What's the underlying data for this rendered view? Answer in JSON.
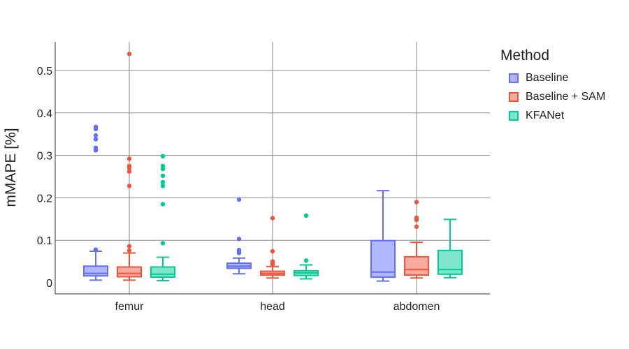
{
  "chart_data": {
    "type": "box",
    "title": "",
    "xlabel": "",
    "ylabel": "mMAPE [%]",
    "ylim": [
      -0.03,
      0.57
    ],
    "yticks": [
      0,
      0.1,
      0.2,
      0.3,
      0.4,
      0.5
    ],
    "ytick_labels": [
      "0",
      "0.1",
      "0.2",
      "0.3",
      "0.4",
      "0.5"
    ],
    "categories": [
      "femur",
      "head",
      "abdomen"
    ],
    "grid": true,
    "legend_title": "Method",
    "legend_position": "top-right",
    "series": [
      {
        "name": "Baseline",
        "color": "#636efa",
        "boxes": [
          {
            "category": "femur",
            "min": 0.006,
            "q1": 0.016,
            "median": 0.022,
            "q3": 0.039,
            "max": 0.074,
            "outliers": [
              0.078,
              0.312,
              0.318,
              0.338,
              0.347,
              0.362,
              0.367
            ]
          },
          {
            "category": "head",
            "min": 0.021,
            "q1": 0.034,
            "median": 0.039,
            "q3": 0.046,
            "max": 0.058,
            "outliers": [
              0.07,
              0.073,
              0.077,
              0.103,
              0.196
            ]
          },
          {
            "category": "abdomen",
            "min": 0.004,
            "q1": 0.013,
            "median": 0.025,
            "q3": 0.099,
            "max": 0.217,
            "outliers": []
          }
        ]
      },
      {
        "name": "Baseline + SAM",
        "color": "#ef553b",
        "boxes": [
          {
            "category": "femur",
            "min": 0.006,
            "q1": 0.014,
            "median": 0.022,
            "q3": 0.037,
            "max": 0.07,
            "outliers": [
              0.076,
              0.086,
              0.228,
              0.262,
              0.27,
              0.275,
              0.292,
              0.539
            ]
          },
          {
            "category": "head",
            "min": 0.011,
            "q1": 0.018,
            "median": 0.022,
            "q3": 0.027,
            "max": 0.038,
            "outliers": [
              0.043,
              0.047,
              0.05,
              0.074,
              0.152
            ]
          },
          {
            "category": "abdomen",
            "min": 0.011,
            "q1": 0.018,
            "median": 0.031,
            "q3": 0.061,
            "max": 0.095,
            "outliers": [
              0.132,
              0.148,
              0.153,
              0.19
            ]
          }
        ]
      },
      {
        "name": "KFANet",
        "color": "#00cc96",
        "boxes": [
          {
            "category": "femur",
            "min": 0.005,
            "q1": 0.013,
            "median": 0.02,
            "q3": 0.037,
            "max": 0.06,
            "outliers": [
              0.093,
              0.185,
              0.228,
              0.237,
              0.252,
              0.268,
              0.275,
              0.298
            ]
          },
          {
            "category": "head",
            "min": 0.009,
            "q1": 0.017,
            "median": 0.023,
            "q3": 0.028,
            "max": 0.042,
            "outliers": [
              0.052,
              0.158
            ]
          },
          {
            "category": "abdomen",
            "min": 0.012,
            "q1": 0.02,
            "median": 0.031,
            "q3": 0.076,
            "max": 0.149,
            "outliers": []
          }
        ]
      }
    ]
  }
}
